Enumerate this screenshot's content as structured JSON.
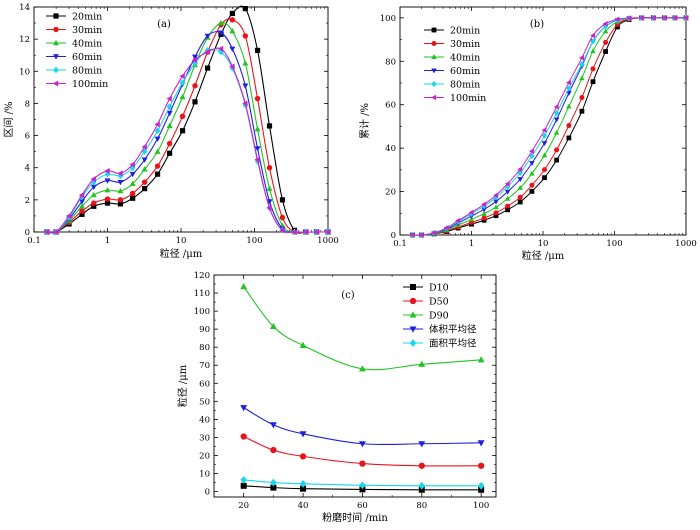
{
  "chart_data": [
    {
      "id": "a",
      "type": "line",
      "panel_label": "(a)",
      "xlabel": "粒径 /μm",
      "ylabel": "区间 /%",
      "x_scale": "log",
      "xlim": [
        0.1,
        1000
      ],
      "ylim": [
        0,
        14
      ],
      "x_ticks": [
        0.1,
        1,
        10,
        100,
        1000
      ],
      "x_tick_labels": [
        "0.1",
        "1",
        "10",
        "100",
        "1000"
      ],
      "y_ticks": [
        0,
        2,
        4,
        6,
        8,
        10,
        12,
        14
      ],
      "y_tick_labels": [
        "0",
        "2",
        "4",
        "6",
        "8",
        "10",
        "12",
        "14"
      ],
      "legend_position": "top-left",
      "x": [
        0.15,
        0.2,
        0.3,
        0.45,
        0.65,
        1.0,
        1.5,
        2.2,
        3.2,
        4.8,
        7.0,
        10.5,
        15.5,
        23,
        35,
        50,
        75,
        110,
        160,
        240,
        350,
        500,
        700,
        1000
      ],
      "series": [
        {
          "name": "20min",
          "color": "#000000",
          "marker": "square",
          "values": [
            0,
            0,
            0.5,
            1.1,
            1.6,
            1.8,
            1.75,
            2.1,
            2.7,
            3.6,
            4.9,
            6.3,
            8.1,
            10.2,
            12.3,
            13.6,
            13.9,
            11.3,
            6.6,
            2.0,
            0.1,
            0,
            0,
            0
          ]
        },
        {
          "name": "30min",
          "color": "#e8141c",
          "marker": "circle",
          "values": [
            0,
            0,
            0.6,
            1.3,
            1.8,
            2.05,
            2.0,
            2.4,
            3.1,
            4.1,
            5.5,
            7.2,
            9.1,
            11.2,
            12.9,
            13.2,
            12.2,
            8.3,
            4.0,
            0.9,
            0,
            0,
            0,
            0
          ]
        },
        {
          "name": "40min",
          "color": "#22c322",
          "marker": "triangle-up",
          "values": [
            0,
            0,
            0.7,
            1.6,
            2.3,
            2.6,
            2.55,
            3.0,
            3.9,
            5.0,
            6.6,
            8.4,
            10.4,
            12.1,
            13.0,
            12.5,
            10.5,
            6.4,
            2.7,
            0.4,
            0,
            0,
            0,
            0
          ]
        },
        {
          "name": "60min",
          "color": "#1f1fe0",
          "marker": "triangle-down",
          "values": [
            0,
            0,
            0.8,
            1.9,
            2.8,
            3.2,
            3.1,
            3.6,
            4.5,
            5.8,
            7.4,
            9.2,
            10.9,
            12.2,
            12.4,
            11.4,
            9.1,
            5.2,
            1.9,
            0.2,
            0,
            0,
            0,
            0
          ]
        },
        {
          "name": "80min",
          "color": "#1ad6e8",
          "marker": "diamond",
          "values": [
            0,
            0,
            0.9,
            2.2,
            3.1,
            3.6,
            3.5,
            4.0,
            5.0,
            6.3,
            7.8,
            9.3,
            10.5,
            11.3,
            11.2,
            10.2,
            7.9,
            4.4,
            1.5,
            0.1,
            0,
            0,
            0,
            0
          ]
        },
        {
          "name": "100min",
          "color": "#cc22cc",
          "marker": "triangle-left",
          "values": [
            0,
            0,
            1.0,
            2.3,
            3.3,
            3.8,
            3.65,
            4.2,
            5.3,
            6.7,
            8.3,
            9.7,
            10.7,
            11.2,
            11.4,
            10.3,
            8.0,
            4.5,
            1.5,
            0.1,
            0,
            0,
            0,
            0
          ]
        }
      ]
    },
    {
      "id": "b",
      "type": "line",
      "panel_label": "(b)",
      "xlabel": "粒径 /μm",
      "ylabel": "累计 /%",
      "x_scale": "log",
      "xlim": [
        0.1,
        1000
      ],
      "ylim": [
        0,
        105
      ],
      "x_ticks": [
        0.1,
        1,
        10,
        100,
        1000
      ],
      "x_tick_labels": [
        "0.1",
        "1",
        "10",
        "100",
        "1000"
      ],
      "y_ticks": [
        0,
        20,
        40,
        60,
        80,
        100
      ],
      "y_tick_labels": [
        "0",
        "20",
        "40",
        "60",
        "80",
        "100"
      ],
      "legend_position": "top-left",
      "x": [
        0.15,
        0.2,
        0.3,
        0.45,
        0.65,
        1.0,
        1.5,
        2.2,
        3.2,
        4.8,
        7.0,
        10.5,
        15.5,
        23,
        35,
        50,
        75,
        110,
        160,
        240,
        350,
        500,
        700,
        1000
      ],
      "series": [
        {
          "name": "20min",
          "color": "#000000",
          "marker": "square",
          "values": [
            0,
            0,
            0.5,
            1.6,
            3.2,
            5.0,
            6.8,
            8.9,
            11.6,
            15.2,
            20.1,
            26.4,
            34.5,
            44.7,
            57.0,
            70.6,
            84.5,
            95.8,
            99.2,
            100,
            100,
            100,
            100,
            100
          ]
        },
        {
          "name": "30min",
          "color": "#e8141c",
          "marker": "circle",
          "values": [
            0,
            0,
            0.6,
            1.9,
            3.7,
            5.8,
            7.8,
            10.2,
            13.3,
            17.4,
            22.9,
            30.1,
            39.2,
            50.4,
            63.3,
            76.5,
            88.7,
            97.0,
            99.4,
            100,
            100,
            100,
            100,
            100
          ]
        },
        {
          "name": "40min",
          "color": "#22c322",
          "marker": "triangle-up",
          "values": [
            0,
            0,
            0.7,
            2.3,
            4.6,
            7.2,
            9.8,
            12.8,
            16.7,
            21.7,
            28.3,
            36.7,
            47.1,
            59.2,
            72.2,
            84.7,
            93.8,
            98.3,
            99.7,
            100,
            100,
            100,
            100,
            100
          ]
        },
        {
          "name": "60min",
          "color": "#1f1fe0",
          "marker": "triangle-down",
          "values": [
            0,
            0,
            0.8,
            2.7,
            5.5,
            8.7,
            11.8,
            15.4,
            19.9,
            25.7,
            33.1,
            42.3,
            53.2,
            65.4,
            77.8,
            89.2,
            96.1,
            98.9,
            99.8,
            100,
            100,
            100,
            100,
            100
          ]
        },
        {
          "name": "80min",
          "color": "#1ad6e8",
          "marker": "diamond",
          "values": [
            0,
            0,
            0.9,
            3.1,
            6.2,
            9.8,
            13.3,
            17.3,
            22.3,
            28.6,
            36.4,
            45.7,
            56.2,
            67.5,
            78.7,
            89.1,
            96.0,
            98.9,
            99.8,
            100,
            100,
            100,
            100,
            100
          ]
        },
        {
          "name": "100min",
          "color": "#cc22cc",
          "marker": "triangle-left",
          "values": [
            0,
            0,
            1.0,
            3.3,
            6.6,
            10.4,
            14.1,
            18.3,
            23.6,
            30.3,
            38.6,
            48.3,
            59.0,
            70.2,
            81.6,
            91.9,
            97.3,
            99.3,
            99.9,
            100,
            100,
            100,
            100,
            100
          ]
        }
      ]
    },
    {
      "id": "c",
      "type": "line",
      "panel_label": "(c)",
      "xlabel": "粉磨时间 /min",
      "ylabel": "粒径 /μm",
      "x_scale": "linear",
      "xlim": [
        10,
        105
      ],
      "ylim": [
        -3,
        120
      ],
      "x_ticks": [
        20,
        40,
        60,
        80,
        100
      ],
      "x_tick_labels": [
        "20",
        "40",
        "60",
        "80",
        "100"
      ],
      "y_ticks": [
        0,
        10,
        20,
        30,
        40,
        50,
        60,
        70,
        80,
        90,
        100,
        110,
        120
      ],
      "y_tick_labels": [
        "0",
        "10",
        "20",
        "30",
        "40",
        "50",
        "60",
        "70",
        "80",
        "90",
        "100",
        "110",
        "120"
      ],
      "legend_position": "top-right",
      "x": [
        20,
        30,
        40,
        60,
        80,
        100
      ],
      "series": [
        {
          "name": "D10",
          "color": "#000000",
          "marker": "square",
          "values": [
            3.2,
            2.2,
            1.6,
            1.2,
            1.0,
            1.0
          ]
        },
        {
          "name": "D50",
          "color": "#e8141c",
          "marker": "circle",
          "values": [
            30.5,
            23.0,
            19.5,
            15.5,
            14.3,
            14.3
          ]
        },
        {
          "name": "D90",
          "color": "#22c322",
          "marker": "triangle-up",
          "values": [
            113.5,
            91.5,
            81.0,
            68.0,
            70.5,
            73.0
          ]
        },
        {
          "name": "体积平均径",
          "color": "#1f1fe0",
          "marker": "triangle-down",
          "values": [
            46.5,
            37.0,
            32.0,
            26.5,
            26.5,
            27.0
          ]
        },
        {
          "name": "面积平均径",
          "color": "#1ad6e8",
          "marker": "diamond",
          "values": [
            6.5,
            5.0,
            4.3,
            3.5,
            3.2,
            3.2
          ]
        }
      ]
    }
  ]
}
